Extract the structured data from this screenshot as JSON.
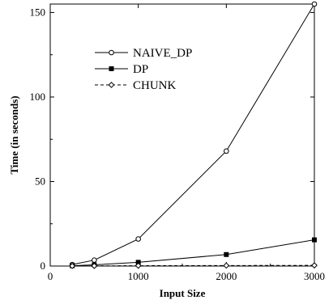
{
  "chart_data": {
    "type": "line",
    "title": "",
    "xlabel": "Input Size",
    "ylabel": "Time (in seconds)",
    "xlim": [
      0,
      3000
    ],
    "ylim": [
      0,
      155
    ],
    "xticks": [
      0,
      1000,
      2000,
      3000
    ],
    "yticks": [
      0,
      50,
      100,
      150
    ],
    "x_tick_labels": [
      "0",
      "1000",
      "2000",
      "3000"
    ],
    "y_tick_labels": [
      "0",
      "50",
      "100",
      "150"
    ],
    "grid": false,
    "legend_position": "upper-left",
    "x": [
      250,
      500,
      1000,
      2000,
      3000
    ],
    "series": [
      {
        "name": "NAIVE_DP",
        "values": [
          0.9,
          3.5,
          16.0,
          68.0,
          155.0
        ],
        "marker": "open-circle",
        "line_style": "solid"
      },
      {
        "name": "DP",
        "values": [
          0.2,
          0.7,
          2.2,
          6.8,
          15.5
        ],
        "marker": "filled-square",
        "line_style": "solid"
      },
      {
        "name": "CHUNK",
        "values": [
          0.05,
          0.1,
          0.2,
          0.3,
          0.4
        ],
        "marker": "open-diamond",
        "line_style": "dashed"
      }
    ]
  }
}
